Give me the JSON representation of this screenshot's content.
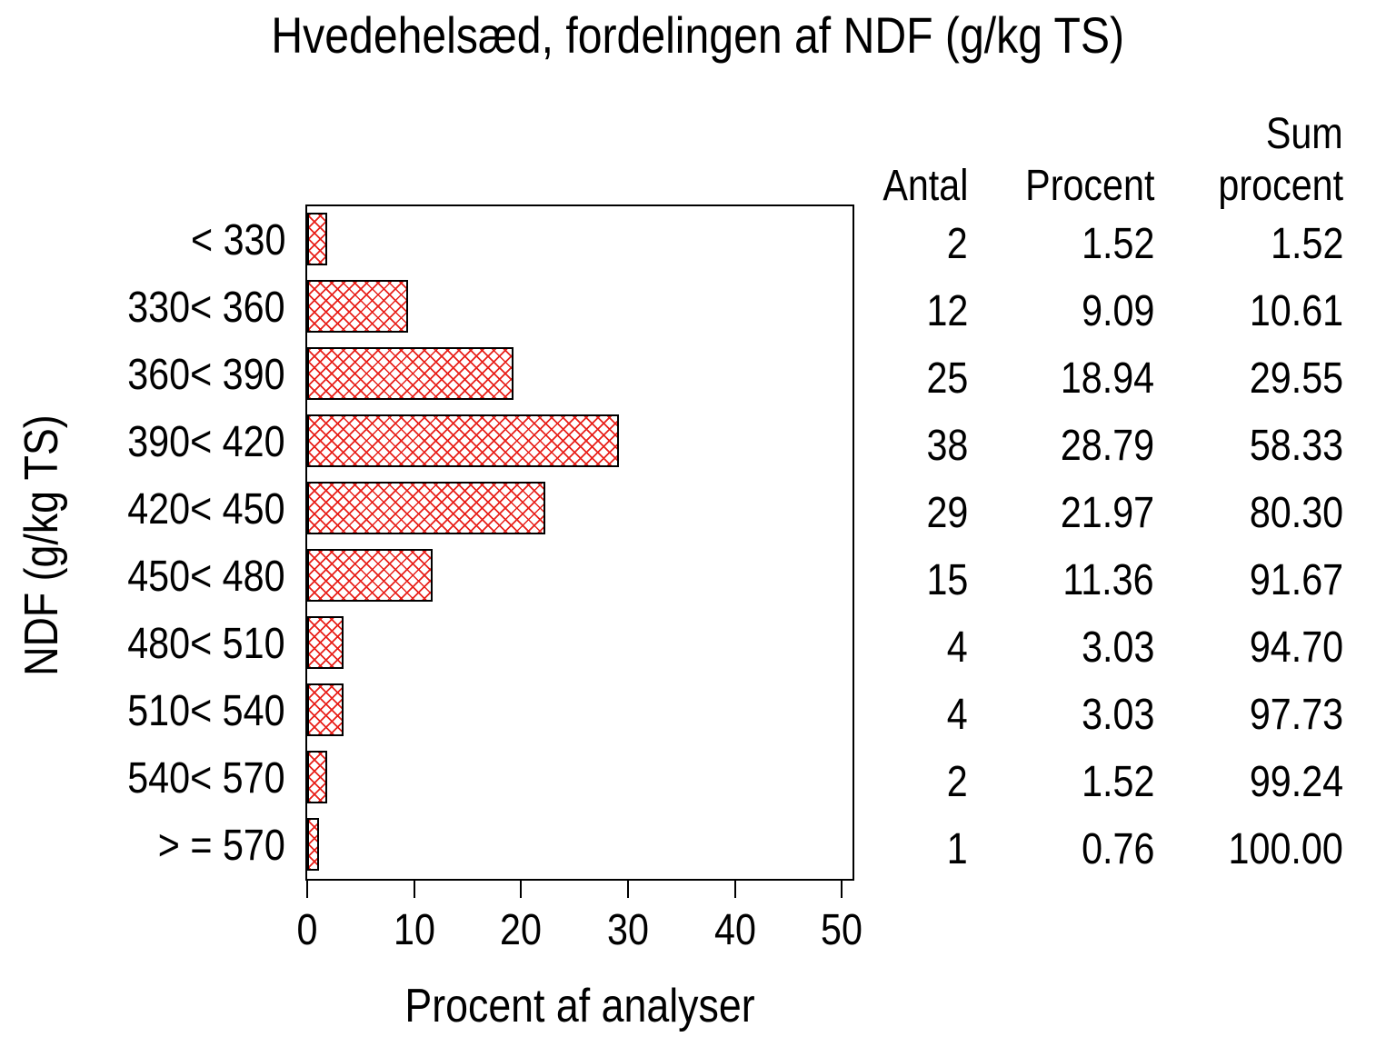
{
  "title": "Hvedehelsæd,  fordelingen  af  NDF  (g/kg  TS)",
  "colors": {
    "hatch": "#e8201a",
    "bar_border": "#000000",
    "text": "#000000",
    "background": "#ffffff"
  },
  "chart_data": {
    "type": "bar",
    "orientation": "horizontal",
    "title": "Hvedehelsæd, fordelingen af NDF (g/kg TS)",
    "xlabel": "Procent  af  analyser",
    "ylabel": "NDF  (g/kg  TS)",
    "xlim": [
      0,
      51
    ],
    "x_ticks": [
      0,
      10,
      20,
      30,
      40,
      50
    ],
    "grid": "off",
    "bar_fill": "red diagonal crosshatch on white, black outline",
    "categories": [
      "< 330",
      "330< 360",
      "360< 390",
      "390< 420",
      "420< 450",
      "450< 480",
      "480< 510",
      "510< 540",
      "540< 570",
      "> = 570"
    ],
    "values": [
      1.52,
      9.09,
      18.94,
      28.79,
      21.97,
      11.36,
      3.03,
      3.03,
      1.52,
      0.76
    ]
  },
  "table": {
    "headers": {
      "sum_line1": "Sum",
      "antal": "Antal",
      "procent": "Procent",
      "sum_line2": "procent"
    },
    "rows": [
      {
        "antal": "2",
        "procent": "1.52",
        "sum": "1.52"
      },
      {
        "antal": "12",
        "procent": "9.09",
        "sum": "10.61"
      },
      {
        "antal": "25",
        "procent": "18.94",
        "sum": "29.55"
      },
      {
        "antal": "38",
        "procent": "28.79",
        "sum": "58.33"
      },
      {
        "antal": "29",
        "procent": "21.97",
        "sum": "80.30"
      },
      {
        "antal": "15",
        "procent": "11.36",
        "sum": "91.67"
      },
      {
        "antal": "4",
        "procent": "3.03",
        "sum": "94.70"
      },
      {
        "antal": "4",
        "procent": "3.03",
        "sum": "97.73"
      },
      {
        "antal": "2",
        "procent": "1.52",
        "sum": "99.24"
      },
      {
        "antal": "1",
        "procent": "0.76",
        "sum": "100.00"
      }
    ]
  }
}
